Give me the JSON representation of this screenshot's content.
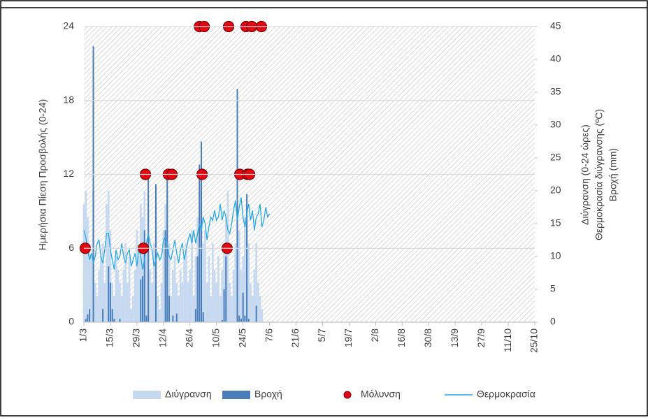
{
  "chart_data": {
    "type": "combo",
    "ylabel": "Ημερήσια Πίεση Προσβολής (0-24)",
    "y2labels": [
      "Διύγρανση (0-24 ώρες)",
      "Θερμοκρασία διύγρανσης (ºC)",
      "Βροχή (mm)"
    ],
    "xlim": [
      0,
      238
    ],
    "xticks": [
      {
        "value": 0,
        "label": "1/3"
      },
      {
        "value": 14,
        "label": "15/3"
      },
      {
        "value": 28,
        "label": "29/3"
      },
      {
        "value": 42,
        "label": "12/4"
      },
      {
        "value": 56,
        "label": "26/4"
      },
      {
        "value": 70,
        "label": "10/5"
      },
      {
        "value": 84,
        "label": "24/5"
      },
      {
        "value": 98,
        "label": "7/6"
      },
      {
        "value": 112,
        "label": "21/6"
      },
      {
        "value": 126,
        "label": "5/7"
      },
      {
        "value": 140,
        "label": "19/7"
      },
      {
        "value": 154,
        "label": "2/8"
      },
      {
        "value": 168,
        "label": "16/8"
      },
      {
        "value": 182,
        "label": "30/8"
      },
      {
        "value": 196,
        "label": "13/9"
      },
      {
        "value": 210,
        "label": "27/9"
      },
      {
        "value": 224,
        "label": "11/10"
      },
      {
        "value": 238,
        "label": "25/10"
      }
    ],
    "ylim": [
      0,
      24
    ],
    "yticks": [
      0,
      6,
      12,
      18,
      24
    ],
    "y2lim": [
      0,
      45
    ],
    "y2ticks": [
      0,
      5,
      10,
      15,
      20,
      25,
      30,
      35,
      40,
      45
    ],
    "grid": true,
    "x": [
      0,
      1,
      2,
      3,
      4,
      5,
      6,
      7,
      8,
      9,
      10,
      11,
      12,
      13,
      14,
      15,
      16,
      17,
      18,
      19,
      20,
      21,
      22,
      23,
      24,
      25,
      26,
      27,
      28,
      29,
      30,
      31,
      32,
      33,
      34,
      35,
      36,
      37,
      38,
      39,
      40,
      41,
      42,
      43,
      44,
      45,
      46,
      47,
      48,
      49,
      50,
      51,
      52,
      53,
      54,
      55,
      56,
      57,
      58,
      59,
      60,
      61,
      62,
      63,
      64,
      65,
      66,
      67,
      68,
      69,
      70,
      71,
      72,
      73,
      74,
      75,
      76,
      77,
      78,
      79,
      80,
      81,
      82,
      83,
      84,
      85,
      86,
      87,
      88,
      89,
      90,
      91,
      92,
      93,
      94,
      95,
      96,
      97,
      98
    ],
    "series": [
      {
        "name": "Διύγρανση",
        "kind": "bar",
        "axis": "y2",
        "color": "#c6d9f0",
        "values": [
          18,
          20,
          16,
          12,
          10,
          20,
          6,
          4,
          8,
          10,
          12,
          6,
          18,
          20,
          14,
          6,
          4,
          10,
          8,
          6,
          4,
          8,
          12,
          6,
          10,
          2,
          4,
          8,
          14,
          10,
          18,
          16,
          20,
          12,
          18,
          8,
          6,
          12,
          18,
          4,
          2,
          6,
          14,
          18,
          20,
          12,
          4,
          8,
          10,
          6,
          4,
          8,
          6,
          10,
          12,
          6,
          8,
          14,
          4,
          10,
          16,
          20,
          18,
          12,
          14,
          6,
          10,
          4,
          12,
          8,
          6,
          10,
          4,
          8,
          12,
          16,
          20,
          6,
          4,
          8,
          12,
          18,
          14,
          8,
          10,
          16,
          18,
          12,
          6,
          4,
          8,
          12,
          6,
          4,
          2,
          0,
          0,
          0,
          0
        ]
      },
      {
        "name": "Βροχή",
        "kind": "bar",
        "axis": "y2",
        "color": "#4a7ebb",
        "values": [
          0,
          0.5,
          1.2,
          2,
          0,
          42,
          0,
          0,
          0,
          0,
          2,
          0,
          0,
          8.5,
          6,
          2,
          0.5,
          0,
          0,
          0.5,
          0,
          0,
          0,
          0,
          0,
          0,
          0,
          0,
          0,
          0,
          6.5,
          7,
          14,
          1,
          23,
          0,
          0,
          0,
          21,
          0,
          0,
          0,
          0,
          14,
          23,
          4,
          0,
          1,
          0,
          1.3,
          0,
          0,
          0,
          0,
          0,
          0,
          0,
          0,
          0,
          2,
          10,
          24,
          27.5,
          1.5,
          0,
          0,
          0,
          0,
          0,
          0,
          0,
          0,
          0,
          0.3,
          5,
          10,
          0,
          0,
          0,
          0,
          0,
          35.5,
          1,
          0.5,
          4.5,
          1,
          19.5,
          0.5,
          0,
          0,
          0,
          2.5,
          0,
          0,
          0,
          0,
          0,
          0,
          0
        ]
      },
      {
        "name": "Θερμοκρασία",
        "kind": "line",
        "axis": "y2",
        "color": "#25a9e0",
        "values": [
          14,
          13,
          11,
          9.5,
          10.5,
          9,
          10,
          12,
          12.5,
          10,
          9,
          11,
          13.5,
          13.5,
          11,
          9.5,
          8,
          11,
          9.5,
          10,
          12,
          10,
          9,
          10.5,
          11,
          8.5,
          9.5,
          10.5,
          8.5,
          11,
          10,
          8,
          9.5,
          12,
          13.5,
          12,
          11,
          8.5,
          9.5,
          10.5,
          9.5,
          10,
          12.5,
          13,
          12,
          10,
          9.5,
          11,
          12.5,
          10.5,
          9,
          11,
          12,
          9.5,
          11,
          12.5,
          13.5,
          12,
          14,
          12,
          13.5,
          15,
          14,
          16,
          15,
          12.5,
          14.5,
          16,
          15.5,
          17,
          15.5,
          16,
          18,
          15.5,
          17,
          16,
          14,
          13.5,
          15,
          17,
          18.5,
          15.5,
          17.5,
          19,
          16,
          14.5,
          16.5,
          18,
          15.5,
          17,
          14,
          16,
          16.5,
          18,
          14.5,
          15.5,
          17.5,
          16,
          16.5
        ]
      },
      {
        "name": "Μόλυνση",
        "kind": "dot",
        "axis": "y",
        "color": "#e30613",
        "x": [
          0.7,
          31.4,
          32.5,
          44.6,
          46.5,
          61,
          62.4,
          63.5,
          75.6,
          76.4,
          82.3,
          85.6,
          86.3,
          87.5,
          88.6,
          93.7
        ],
        "values": [
          6,
          6,
          12,
          12,
          12,
          24,
          12,
          24,
          6,
          24,
          12,
          24,
          12,
          12,
          24,
          24
        ]
      }
    ]
  }
}
